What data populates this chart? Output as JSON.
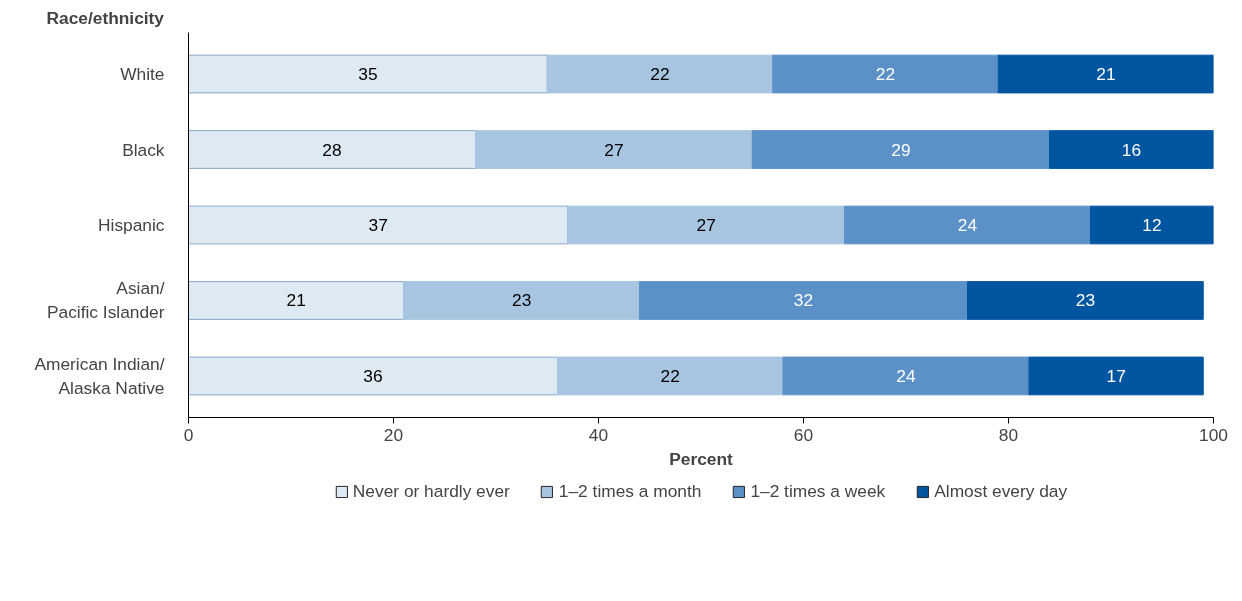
{
  "chart_data": {
    "type": "bar",
    "orientation": "horizontal",
    "stacked": true,
    "xlabel": "Percent",
    "ylabel": "Race/ethnicity",
    "categories": [
      "White",
      "Black",
      "Hispanic",
      "Asian/\nPacific Islander",
      "American Indian/\nAlaska Native"
    ],
    "series": [
      {
        "name": "Never or hardly ever",
        "color": "#dde9f3",
        "values": [
          35,
          28,
          37,
          21,
          36
        ]
      },
      {
        "name": "1–2 times a month",
        "color": "#a7c5e1",
        "values": [
          22,
          27,
          27,
          23,
          22
        ]
      },
      {
        "name": "1–2 times a week",
        "color": "#5b91c7",
        "values": [
          22,
          29,
          24,
          32,
          24
        ]
      },
      {
        "name": "Almost every day",
        "color": "#0055a1",
        "values": [
          21,
          16,
          12,
          23,
          17
        ]
      }
    ],
    "xlim": [
      0,
      100
    ],
    "xticks": [
      0,
      20,
      40,
      60,
      80,
      100
    ],
    "data_labels": true,
    "legend": "bottom",
    "grid": false
  }
}
